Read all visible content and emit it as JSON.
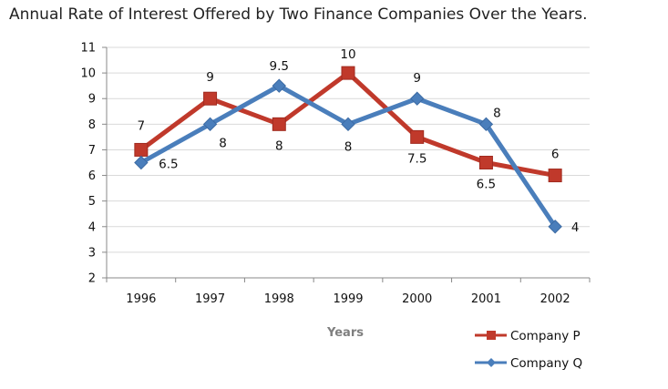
{
  "chart_data": {
    "type": "line",
    "title": "Annual Rate of Interest Offered by Two Finance Companies Over the Years.",
    "xlabel": "Years",
    "ylabel": "",
    "categories": [
      "1996",
      "1997",
      "1998",
      "1999",
      "2000",
      "2001",
      "2002"
    ],
    "ylim": [
      2,
      11
    ],
    "yticks": [
      "2",
      "3",
      "4",
      "5",
      "6",
      "7",
      "8",
      "9",
      "10",
      "11"
    ],
    "grid": true,
    "legend_position": "bottom-right",
    "series": [
      {
        "name": "Company P",
        "color": "#c0392b",
        "marker": "square",
        "values": [
          7,
          9,
          8,
          10,
          7.5,
          6.5,
          6
        ],
        "labels": [
          "7",
          "9",
          "8",
          "10",
          "7.5",
          "6.5",
          "6"
        ]
      },
      {
        "name": "Company Q",
        "color": "#4a7ebb",
        "marker": "diamond",
        "values": [
          6.5,
          8,
          9.5,
          8,
          9,
          8,
          4
        ],
        "labels": [
          "6.5",
          "8",
          "9.5",
          "8",
          "9",
          "8",
          "4"
        ]
      }
    ]
  }
}
